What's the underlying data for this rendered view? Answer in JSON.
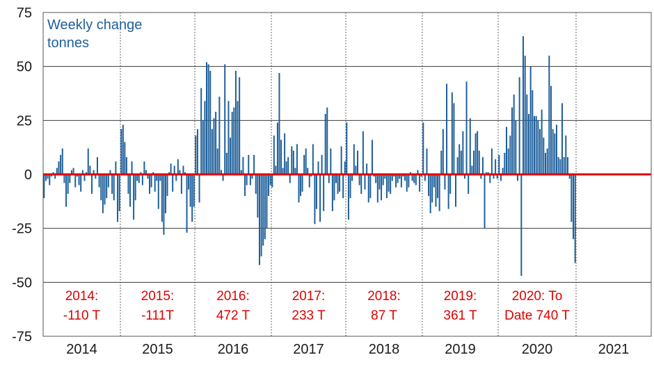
{
  "chart_data": {
    "type": "bar",
    "title": "",
    "ylabel_lines": [
      "Weekly change",
      "tonnes"
    ],
    "xlabel": "",
    "ylim": [
      -75,
      75
    ],
    "yticks": [
      75,
      50,
      25,
      0,
      -25,
      -50,
      -75
    ],
    "x_categories": [
      "2014",
      "2015",
      "2016",
      "2017",
      "2018",
      "2019",
      "2020",
      "2021"
    ],
    "grid": true,
    "colors": {
      "bars": "#1f5f9a",
      "zero_line": "#e00000",
      "annotation": "#e00000",
      "ytitle": "#1f5f9a"
    },
    "annotations": [
      {
        "year": "2014",
        "lines": [
          "2014:",
          "-110 T"
        ]
      },
      {
        "year": "2015",
        "lines": [
          "2015:",
          "-111T"
        ]
      },
      {
        "year": "2016",
        "lines": [
          "2016:",
          "472 T"
        ]
      },
      {
        "year": "2017",
        "lines": [
          "2017:",
          "233 T"
        ]
      },
      {
        "year": "2018",
        "lines": [
          "2018:",
          "87 T"
        ]
      },
      {
        "year": "2019",
        "lines": [
          "2019:",
          "361 T"
        ]
      },
      {
        "year": "2020",
        "lines": [
          "2020: To",
          "Date 740 T"
        ]
      }
    ],
    "series": [
      {
        "name": "Weekly change tonnes",
        "values_by_year": {
          "2014": [
            -11,
            -3,
            -2,
            -5,
            -1,
            1,
            -2,
            3,
            6,
            9,
            12,
            -4,
            -15,
            -9,
            -4,
            2,
            3,
            -6,
            -1,
            -5,
            -8,
            2,
            -3,
            1,
            12,
            4,
            -9,
            2,
            -2,
            8,
            -6,
            -12,
            -18,
            -14,
            -11,
            -6,
            2,
            -9,
            -12,
            6,
            -22,
            -17
          ],
          "2015": [
            21,
            23,
            15,
            8,
            -9,
            -15,
            6,
            -21,
            -12,
            -3,
            -4,
            1,
            -5,
            6,
            2,
            -2,
            -9,
            -6,
            1,
            -8,
            -3,
            -16,
            -3,
            -22,
            -28,
            -18,
            -10,
            1,
            5,
            -8,
            4,
            -3,
            7,
            2,
            -9,
            4,
            1,
            -27,
            -7,
            -15,
            -22,
            -15
          ],
          "2016": [
            18,
            21,
            -13,
            40,
            25,
            34,
            52,
            51,
            48,
            21,
            26,
            29,
            12,
            36,
            2,
            -3,
            51,
            10,
            34,
            17,
            29,
            31,
            48,
            34,
            45,
            2,
            8,
            -10,
            -5,
            9,
            -5,
            -2,
            9,
            -9,
            -20,
            -42,
            -38,
            -33,
            -30,
            -25,
            -10,
            -5
          ],
          "2017": [
            -6,
            18,
            4,
            24,
            47,
            16,
            3,
            19,
            6,
            8,
            -4,
            13,
            11,
            3,
            14,
            -13,
            -10,
            -8,
            9,
            12,
            3,
            -6,
            -1,
            14,
            -23,
            -16,
            6,
            -22,
            9,
            -17,
            28,
            31,
            -4,
            12,
            -17,
            -12,
            -4,
            -9,
            -8,
            13,
            -11,
            6
          ],
          "2018": [
            24,
            -21,
            -11,
            -3,
            14,
            4,
            11,
            -5,
            -9,
            20,
            -7,
            5,
            -13,
            -11,
            16,
            -1,
            -4,
            -13,
            -7,
            -12,
            -5,
            -2,
            -11,
            -8,
            -9,
            -3,
            -1,
            -6,
            -4,
            -2,
            -6,
            -1,
            -3,
            -8,
            -6,
            1,
            -3,
            -4,
            -5,
            2,
            -8,
            -1
          ],
          "2019": [
            24,
            -3,
            12,
            -10,
            -18,
            -13,
            -6,
            -15,
            -11,
            -17,
            11,
            21,
            -7,
            42,
            -16,
            -9,
            38,
            33,
            -15,
            8,
            14,
            11,
            20,
            -2,
            43,
            -9,
            26,
            4,
            11,
            19,
            20,
            11,
            -2,
            8,
            -25,
            1,
            1,
            -4,
            12,
            -2,
            7,
            -2
          ],
          "2020": [
            9,
            -3,
            3,
            10,
            22,
            12,
            18,
            31,
            37,
            25,
            -3,
            45,
            -47,
            64,
            55,
            37,
            28,
            50,
            39,
            27,
            27,
            25,
            21,
            30,
            17,
            10,
            12,
            55,
            41,
            21,
            19,
            23,
            8,
            7,
            33,
            8,
            18,
            8,
            -2,
            -22,
            -30,
            -41
          ],
          "2021": []
        }
      }
    ]
  }
}
